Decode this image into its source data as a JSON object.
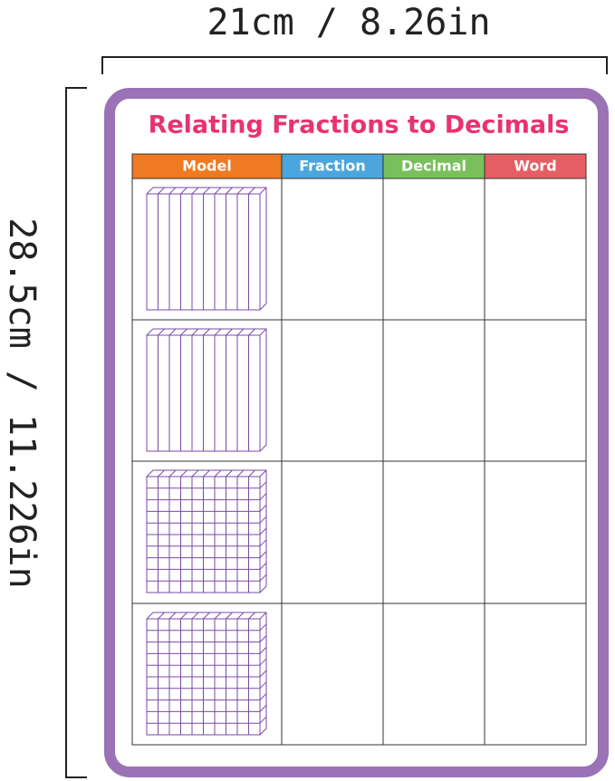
{
  "width_label": "21cm / 8.26in",
  "height_label": "28.5cm / 11.226in",
  "board": {
    "title": "Relating Fractions to Decimals",
    "table": {
      "headers": [
        "Model",
        "Fraction",
        "Decimal",
        "Word"
      ]
    }
  }
}
